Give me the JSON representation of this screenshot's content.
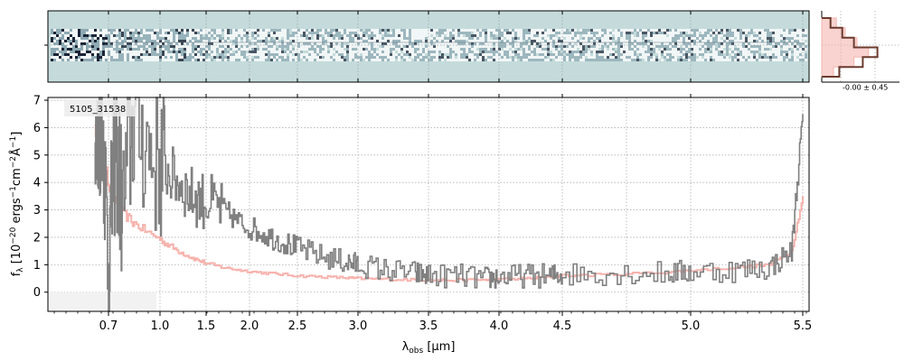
{
  "chart_data": [
    {
      "type": "heatmap",
      "panel": "2D spectrum",
      "colormap": [
        "#ffffff",
        "#c5dbdb",
        "#1a2436"
      ],
      "grid": true,
      "values": "2D dispersed spectrum image (noise-like structure, strongest on the blue end)"
    },
    {
      "type": "histogram",
      "panel": "pixel distribution",
      "annotation": "-0.00 ± 0.45",
      "bins": [
        -3,
        -2,
        -1,
        0,
        1,
        2,
        3
      ],
      "data_counts": [
        0.15,
        0.35,
        0.55,
        0.95,
        0.7,
        0.3
      ],
      "model_counts": [
        0.25,
        0.4,
        0.6,
        0.8,
        0.55,
        0.2
      ],
      "colors": {
        "data": "#6b3b2e",
        "model": "#f4b6b0"
      }
    },
    {
      "type": "line",
      "label_box": "5105_31538",
      "xlabel": "λ_obs [μm]",
      "ylabel": "f_λ [10^-20 ergs^-1cm^-2Å^-1]",
      "ylim": [
        -0.7,
        7.1
      ],
      "yticks": [
        0,
        1,
        2,
        3,
        4,
        5,
        6,
        7
      ],
      "xtick_labels": [
        "0.7",
        "1.0",
        "1.5",
        "2.0",
        "2.5",
        "3.0",
        "3.5",
        "4.0",
        "4.5",
        "5.0",
        "5.5"
      ],
      "grid": true,
      "colors": {
        "data": "#808080",
        "model": "#f4a6a0",
        "error_band": "#f2f2f2"
      },
      "series": [
        {
          "role": "data",
          "x": [
            0.62,
            0.66,
            0.7,
            0.74,
            0.78,
            0.85,
            0.95,
            1.05,
            1.2,
            1.35,
            1.5,
            1.7,
            1.9,
            2.1,
            2.3,
            2.5,
            2.7,
            2.9,
            3.0,
            3.2,
            3.4,
            3.5,
            3.7,
            3.9,
            4.0,
            4.2,
            4.4,
            4.5,
            4.7,
            4.9,
            5.0,
            5.2,
            5.35,
            5.45,
            5.5
          ],
          "values": [
            4.0,
            7.0,
            1.0,
            5.5,
            3.0,
            6.5,
            5.0,
            4.5,
            4.0,
            3.5,
            3.3,
            3.0,
            2.5,
            2.2,
            1.9,
            1.6,
            1.3,
            1.1,
            1.0,
            0.8,
            0.7,
            0.6,
            0.6,
            0.5,
            0.55,
            0.6,
            0.6,
            0.65,
            0.7,
            0.7,
            0.75,
            0.8,
            0.9,
            1.5,
            6.5
          ]
        },
        {
          "role": "model",
          "x": [
            0.62,
            0.66,
            0.7,
            0.74,
            0.78,
            0.85,
            0.95,
            1.05,
            1.2,
            1.35,
            1.5,
            1.7,
            1.9,
            2.1,
            2.3,
            2.5,
            2.7,
            2.9,
            3.0,
            3.2,
            3.4,
            3.5,
            3.7,
            3.9,
            4.0,
            4.2,
            4.4,
            4.5,
            4.7,
            4.9,
            5.0,
            5.2,
            5.35,
            5.45,
            5.5
          ],
          "values": [
            6.0,
            5.0,
            4.0,
            3.3,
            2.9,
            2.5,
            2.1,
            1.8,
            1.5,
            1.25,
            1.05,
            0.9,
            0.8,
            0.72,
            0.66,
            0.6,
            0.56,
            0.52,
            0.5,
            0.47,
            0.45,
            0.44,
            0.44,
            0.45,
            0.46,
            0.5,
            0.55,
            0.6,
            0.65,
            0.72,
            0.8,
            0.9,
            1.0,
            1.5,
            3.5
          ]
        }
      ]
    }
  ]
}
